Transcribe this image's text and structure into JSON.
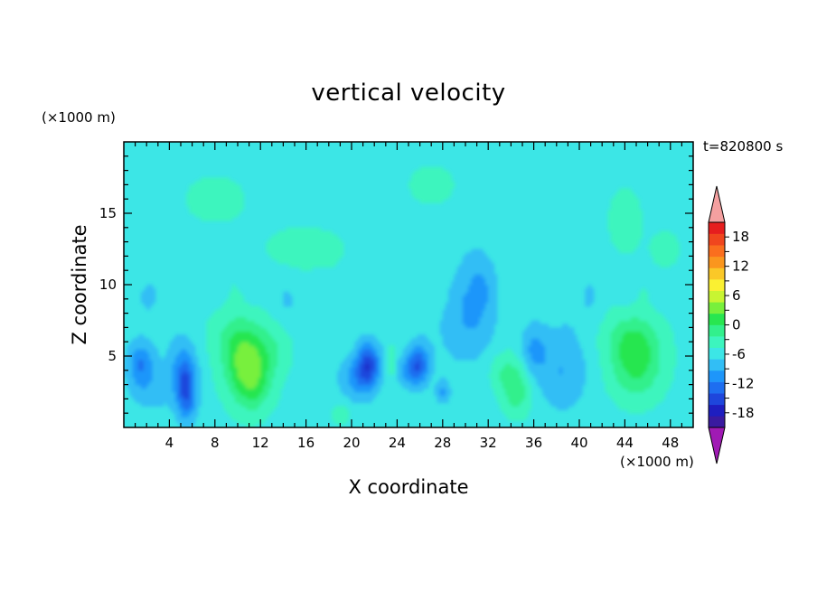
{
  "chart_data": {
    "type": "heatmap",
    "title": "vertical velocity",
    "xlabel": "X coordinate",
    "ylabel": "Z coordinate",
    "x_unit": "(×1000 m)",
    "y_unit": "(×1000 m)",
    "time_label": "t=820800 s",
    "xlim": [
      0,
      50
    ],
    "ylim": [
      0,
      20
    ],
    "x_ticks": [
      4,
      8,
      12,
      16,
      20,
      24,
      28,
      32,
      36,
      40,
      44,
      48
    ],
    "y_ticks": [
      5,
      10,
      15
    ],
    "colorbar": {
      "range": [
        -21,
        21
      ],
      "step": 3,
      "tick_labels": [
        18,
        12,
        6,
        0,
        -6,
        -12,
        -18
      ],
      "extend": "both",
      "colors": [
        "#a01ab4",
        "#3a1aa0",
        "#1e1ec0",
        "#1e46dc",
        "#1e6ef0",
        "#1e96fa",
        "#32bef5",
        "#3ce6e6",
        "#3cf5be",
        "#32f08c",
        "#28e650",
        "#78f03c",
        "#c8f532",
        "#faf032",
        "#fac828",
        "#fa961e",
        "#fa6e1e",
        "#f0461e",
        "#e61e1e",
        "#f4a0a0"
      ]
    },
    "features": [
      {
        "x": 10.5,
        "z": 4.5,
        "w": 9,
        "label": "updraft"
      },
      {
        "x": 11.5,
        "z": 3.5,
        "w": 7,
        "label": "updraft"
      },
      {
        "x": 45.0,
        "z": 4.5,
        "w": 8,
        "label": "updraft"
      },
      {
        "x": 34.5,
        "z": 2.5,
        "w": 6,
        "label": "updraft"
      },
      {
        "x": 5.5,
        "z": 2.5,
        "w": -11,
        "label": "downdraft"
      },
      {
        "x": 1.5,
        "z": 4.5,
        "w": -8,
        "label": "downdraft"
      },
      {
        "x": 21.5,
        "z": 4.5,
        "w": -11,
        "label": "downdraft"
      },
      {
        "x": 26.0,
        "z": 4.5,
        "w": -9,
        "label": "downdraft"
      },
      {
        "x": 28.0,
        "z": 2.5,
        "w": -6,
        "label": "downdraft"
      },
      {
        "x": 36.0,
        "z": 5.5,
        "w": -5,
        "label": "downdraft"
      },
      {
        "x": 31.0,
        "z": 10.0,
        "w": -5,
        "label": "downdraft"
      }
    ]
  }
}
